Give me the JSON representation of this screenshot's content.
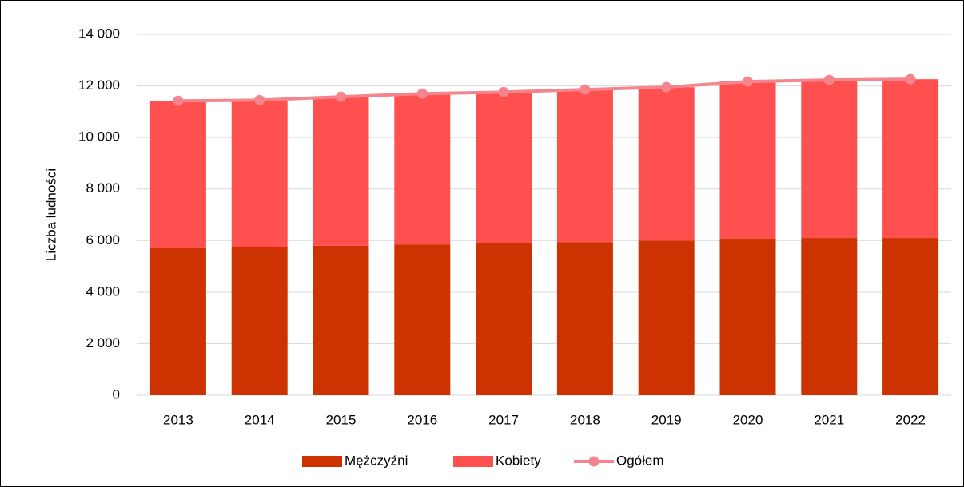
{
  "chart_data": {
    "type": "stacked_bar_line",
    "y_label": "Liczba ludności",
    "categories": [
      "2013",
      "2014",
      "2015",
      "2016",
      "2017",
      "2018",
      "2019",
      "2020",
      "2021",
      "2022"
    ],
    "series": [
      {
        "name": "Mężczyźni",
        "color": "#cc3300",
        "kind": "bar",
        "values": [
          5700,
          5730,
          5800,
          5850,
          5910,
          5940,
          6000,
          6070,
          6100,
          6100
        ]
      },
      {
        "name": "Kobiety",
        "color": "#ff5050",
        "kind": "bar",
        "values": [
          5720,
          5720,
          5780,
          5850,
          5850,
          5920,
          5950,
          6100,
          6130,
          6160
        ]
      },
      {
        "name": "Ogółem",
        "color": "#f4858c",
        "kind": "line",
        "values": [
          11420,
          11450,
          11580,
          11700,
          11760,
          11860,
          11950,
          12170,
          12230,
          12260
        ]
      }
    ],
    "ylim": [
      0,
      14000
    ],
    "yticks": [
      0,
      {
        "value": 2000,
        "label": "2 000"
      },
      {
        "value": 4000,
        "label": "4 000"
      },
      {
        "value": 6000,
        "label": "6 000"
      },
      {
        "value": 8000,
        "label": "8 000"
      },
      {
        "value": 10000,
        "label": "10 000"
      },
      {
        "value": 12000,
        "label": "12 000"
      },
      {
        "value": 14000,
        "label": "14 000"
      }
    ],
    "grid": true,
    "legend": "bottom"
  }
}
